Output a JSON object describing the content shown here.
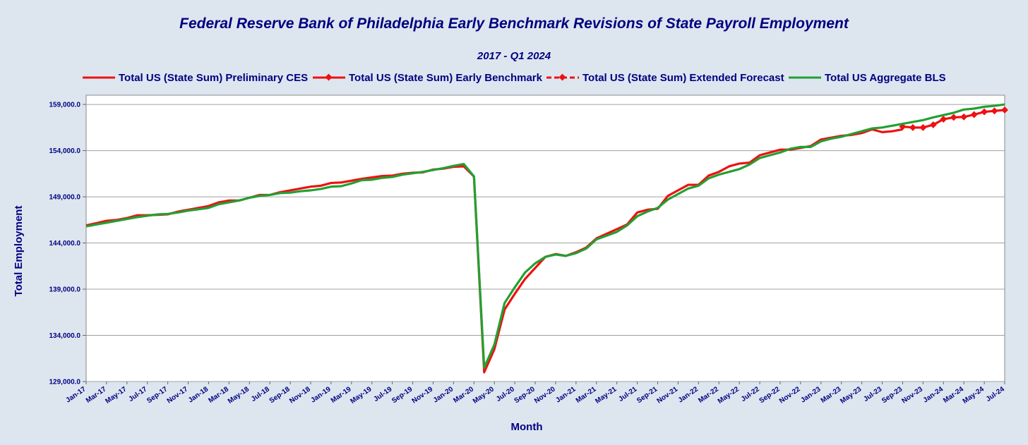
{
  "chart_data": {
    "type": "line",
    "title": "Federal Reserve Bank of Philadelphia Early Benchmark Revisions of State Payroll Employment",
    "subtitle": "2017 - Q1 2024",
    "xlabel": "Month",
    "ylabel": "Total Employment",
    "ylim": [
      129000,
      160000
    ],
    "yticks": [
      "129,000.0",
      "134,000.0",
      "139,000.0",
      "144,000.0",
      "149,000.0",
      "154,000.0",
      "159,000.0"
    ],
    "ytick_values": [
      129000,
      134000,
      139000,
      144000,
      149000,
      154000,
      159000
    ],
    "x_start": "2017-01",
    "x_end": "2024-07",
    "xticks": [
      "Jan-17",
      "Mar-17",
      "May-17",
      "Jul-17",
      "Sep-17",
      "Nov-17",
      "Jan-18",
      "Mar-18",
      "May-18",
      "Jul-18",
      "Sep-18",
      "Nov-18",
      "Jan-19",
      "Mar-19",
      "May-19",
      "Jul-19",
      "Sep-19",
      "Nov-19",
      "Jan-20",
      "Mar-20",
      "May-20",
      "Jul-20",
      "Sep-20",
      "Nov-20",
      "Jan-21",
      "Mar-21",
      "May-21",
      "Jul-21",
      "Sep-21",
      "Nov-21",
      "Jan-22",
      "Mar-22",
      "May-22",
      "Jul-22",
      "Sep-22",
      "Nov-22",
      "Jan-23",
      "Mar-23",
      "May-23",
      "Jul-23",
      "Sep-23",
      "Nov-23",
      "Jan-24",
      "Mar-24",
      "May-24",
      "Jul-24"
    ],
    "legend_position": "top",
    "grid": true,
    "series": [
      {
        "name": "Total US (State Sum) Preliminary CES",
        "color": "#ee1111",
        "style": "solid",
        "markers": false,
        "x": [
          "Jan-17",
          "Feb-17",
          "Mar-17",
          "Apr-17",
          "May-17",
          "Jun-17",
          "Jul-17",
          "Aug-17",
          "Sep-17",
          "Oct-17",
          "Nov-17",
          "Dec-17",
          "Jan-18",
          "Feb-18",
          "Mar-18",
          "Apr-18",
          "May-18",
          "Jun-18",
          "Jul-18",
          "Aug-18",
          "Sep-18",
          "Oct-18",
          "Nov-18",
          "Dec-18",
          "Jan-19",
          "Feb-19",
          "Mar-19",
          "Apr-19",
          "May-19",
          "Jun-19",
          "Jul-19",
          "Aug-19",
          "Sep-19",
          "Oct-19",
          "Nov-19",
          "Dec-19",
          "Jan-20",
          "Feb-20",
          "Mar-20",
          "Apr-20",
          "May-20",
          "Jun-20",
          "Jul-20",
          "Aug-20",
          "Sep-20",
          "Oct-20",
          "Nov-20",
          "Dec-20",
          "Jan-21",
          "Feb-21",
          "Mar-21",
          "Apr-21",
          "May-21",
          "Jun-21",
          "Jul-21",
          "Aug-21",
          "Sep-21",
          "Oct-21",
          "Nov-21",
          "Dec-21",
          "Jan-22",
          "Feb-22",
          "Mar-22",
          "Apr-22",
          "May-22",
          "Jun-22",
          "Jul-22",
          "Aug-22",
          "Sep-22",
          "Oct-22",
          "Nov-22",
          "Dec-22",
          "Jan-23",
          "Feb-23",
          "Mar-23",
          "Apr-23",
          "May-23",
          "Jun-23",
          "Jul-23",
          "Aug-23",
          "Sep-23"
        ],
        "values": [
          145900,
          146150,
          146400,
          146500,
          146700,
          147000,
          147000,
          147050,
          147100,
          147400,
          147600,
          147800,
          148000,
          148400,
          148600,
          148600,
          148900,
          149200,
          149200,
          149500,
          149700,
          149900,
          150100,
          150200,
          150500,
          150550,
          150750,
          150950,
          151100,
          151250,
          151300,
          151500,
          151600,
          151650,
          151950,
          152050,
          152250,
          152300,
          151200,
          130000,
          132500,
          136800,
          138500,
          140100,
          141300,
          142500,
          142800,
          142600,
          143000,
          143500,
          144500,
          145000,
          145500,
          146000,
          147300,
          147600,
          147700,
          149100,
          149700,
          150300,
          150300,
          151300,
          151700,
          152300,
          152600,
          152700,
          153500,
          153800,
          154100,
          154100,
          154300,
          154500,
          155200,
          155400,
          155600,
          155700,
          155900,
          156300,
          156000,
          156100,
          156300
        ]
      },
      {
        "name": "Total US (State Sum) Early Benchmark",
        "color": "#ee1111",
        "style": "solid",
        "markers": true,
        "x": [
          "Sep-23",
          "Oct-23",
          "Nov-23",
          "Dec-23",
          "Jan-24",
          "Feb-24",
          "Mar-24",
          "Apr-24",
          "May-24",
          "Jun-24",
          "Jul-24"
        ],
        "values": [
          156600,
          156500,
          156500,
          156800,
          157400,
          157600,
          157650,
          157900,
          158200,
          158300,
          158400
        ]
      },
      {
        "name": "Total US (State Sum) Extended Forecast",
        "color": "#ee1111",
        "style": "dashed",
        "markers": true,
        "x": [],
        "values": []
      },
      {
        "name": "Total US Aggregate BLS",
        "color": "#22a033",
        "style": "solid",
        "markers": false,
        "x": [
          "Jan-17",
          "Feb-17",
          "Mar-17",
          "Apr-17",
          "May-17",
          "Jun-17",
          "Jul-17",
          "Aug-17",
          "Sep-17",
          "Oct-17",
          "Nov-17",
          "Dec-17",
          "Jan-18",
          "Feb-18",
          "Mar-18",
          "Apr-18",
          "May-18",
          "Jun-18",
          "Jul-18",
          "Aug-18",
          "Sep-18",
          "Oct-18",
          "Nov-18",
          "Dec-18",
          "Jan-19",
          "Feb-19",
          "Mar-19",
          "Apr-19",
          "May-19",
          "Jun-19",
          "Jul-19",
          "Aug-19",
          "Sep-19",
          "Oct-19",
          "Nov-19",
          "Dec-19",
          "Jan-20",
          "Feb-20",
          "Mar-20",
          "Apr-20",
          "May-20",
          "Jun-20",
          "Jul-20",
          "Aug-20",
          "Sep-20",
          "Oct-20",
          "Nov-20",
          "Dec-20",
          "Jan-21",
          "Feb-21",
          "Mar-21",
          "Apr-21",
          "May-21",
          "Jun-21",
          "Jul-21",
          "Aug-21",
          "Sep-21",
          "Oct-21",
          "Nov-21",
          "Dec-21",
          "Jan-22",
          "Feb-22",
          "Mar-22",
          "Apr-22",
          "May-22",
          "Jun-22",
          "Jul-22",
          "Aug-22",
          "Sep-22",
          "Oct-22",
          "Nov-22",
          "Dec-22",
          "Jan-23",
          "Feb-23",
          "Mar-23",
          "Apr-23",
          "May-23",
          "Jun-23",
          "Jul-23",
          "Aug-23",
          "Sep-23",
          "Oct-23",
          "Nov-23",
          "Dec-23",
          "Jan-24",
          "Feb-24",
          "Mar-24",
          "Apr-24",
          "May-24",
          "Jun-24",
          "Jul-24"
        ],
        "values": [
          145800,
          146000,
          146200,
          146400,
          146600,
          146800,
          146950,
          147100,
          147150,
          147300,
          147500,
          147650,
          147800,
          148200,
          148400,
          148600,
          148900,
          149100,
          149200,
          149400,
          149450,
          149600,
          149700,
          149850,
          150100,
          150150,
          150450,
          150800,
          150850,
          151050,
          151150,
          151400,
          151550,
          151700,
          151900,
          152100,
          152350,
          152550,
          151200,
          130500,
          133000,
          137500,
          139200,
          140800,
          141800,
          142500,
          142750,
          142600,
          142900,
          143400,
          144400,
          144800,
          145200,
          145900,
          146900,
          147400,
          147800,
          148700,
          149300,
          149900,
          150200,
          151000,
          151400,
          151700,
          152000,
          152500,
          153200,
          153500,
          153800,
          154200,
          154400,
          154400,
          155000,
          155300,
          155500,
          155800,
          156100,
          156400,
          156500,
          156700,
          156900,
          157100,
          157300,
          157600,
          157850,
          158100,
          158450,
          158550,
          158750,
          158850,
          159000
        ]
      }
    ]
  }
}
